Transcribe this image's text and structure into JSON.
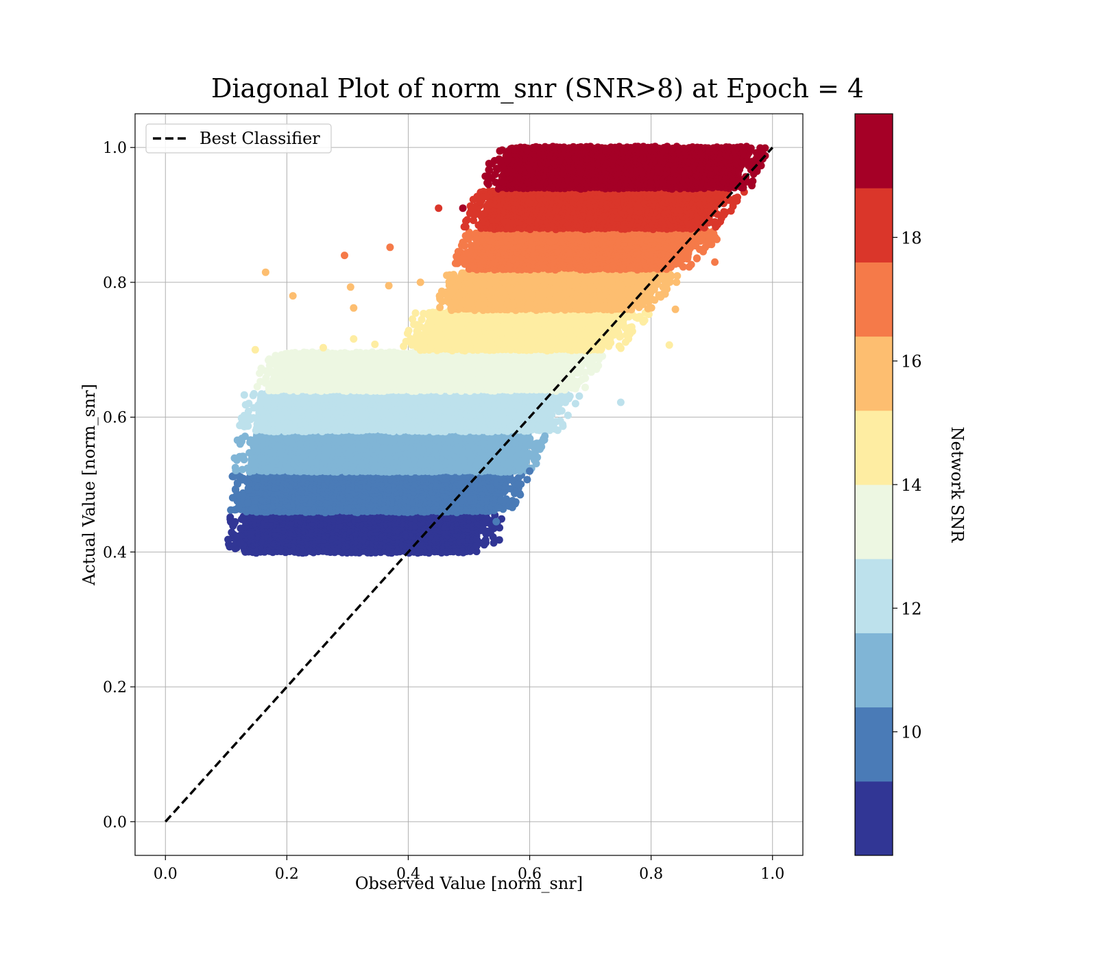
{
  "chart_data": {
    "type": "scatter",
    "title": "Diagonal Plot of norm_snr (SNR>8) at Epoch = 4",
    "xlabel": "Observed Value [norm_snr]",
    "ylabel": "Actual Value [norm_snr]",
    "xlim": [
      -0.05,
      1.05
    ],
    "ylim": [
      -0.05,
      1.05
    ],
    "xticks": [
      "0.0",
      "0.2",
      "0.4",
      "0.6",
      "0.8",
      "1.0"
    ],
    "yticks": [
      "0.0",
      "0.2",
      "0.4",
      "0.6",
      "0.8",
      "1.0"
    ],
    "grid": true,
    "legend": {
      "placement": "top-left",
      "entries": [
        "Best Classifier"
      ]
    },
    "reference_line": {
      "name": "Best Classifier",
      "x": [
        0,
        1
      ],
      "y": [
        0,
        1
      ],
      "style": "dashed",
      "color": "#000000"
    },
    "colorbar": {
      "label": "Network SNR",
      "range": [
        8,
        20
      ],
      "ticks": [
        "10",
        "12",
        "14",
        "16",
        "18"
      ],
      "bins": [
        {
          "from": 8,
          "to": 9.2,
          "color": "#313695"
        },
        {
          "from": 9.2,
          "to": 10.4,
          "color": "#4a7bb7"
        },
        {
          "from": 10.4,
          "to": 11.6,
          "color": "#80b5d6"
        },
        {
          "from": 11.6,
          "to": 12.8,
          "color": "#bde1ec"
        },
        {
          "from": 12.8,
          "to": 14.0,
          "color": "#edf7e2"
        },
        {
          "from": 14.0,
          "to": 15.2,
          "color": "#feeda2"
        },
        {
          "from": 15.2,
          "to": 16.4,
          "color": "#fdbe70"
        },
        {
          "from": 16.4,
          "to": 17.6,
          "color": "#f57a49"
        },
        {
          "from": 17.6,
          "to": 18.8,
          "color": "#da362a"
        },
        {
          "from": 18.8,
          "to": 20.0,
          "color": "#a50026"
        }
      ]
    },
    "scatter_bands": [
      {
        "snr": 8.6,
        "y_range": [
          0.4,
          0.455
        ],
        "x_min": [
          0.13,
          0.135
        ],
        "x_max": [
          0.505,
          0.53
        ]
      },
      {
        "snr": 9.8,
        "y_range": [
          0.46,
          0.515
        ],
        "x_min": [
          0.135,
          0.14
        ],
        "x_max": [
          0.545,
          0.57
        ]
      },
      {
        "snr": 11.0,
        "y_range": [
          0.52,
          0.575
        ],
        "x_min": [
          0.14,
          0.15
        ],
        "x_max": [
          0.58,
          0.6
        ]
      },
      {
        "snr": 12.2,
        "y_range": [
          0.58,
          0.635
        ],
        "x_min": [
          0.15,
          0.16
        ],
        "x_max": [
          0.625,
          0.655
        ]
      },
      {
        "snr": 13.4,
        "y_range": [
          0.64,
          0.695
        ],
        "x_min": [
          0.17,
          0.2
        ],
        "x_max": [
          0.66,
          0.7
        ]
      },
      {
        "snr": 14.6,
        "y_range": [
          0.7,
          0.755
        ],
        "x_min": [
          0.42,
          0.44
        ],
        "x_max": [
          0.72,
          0.77
        ]
      },
      {
        "snr": 15.8,
        "y_range": [
          0.76,
          0.815
        ],
        "x_min": [
          0.47,
          0.49
        ],
        "x_max": [
          0.77,
          0.83
        ]
      },
      {
        "snr": 17.0,
        "y_range": [
          0.82,
          0.875
        ],
        "x_min": [
          0.5,
          0.52
        ],
        "x_max": [
          0.83,
          0.9
        ]
      },
      {
        "snr": 18.2,
        "y_range": [
          0.88,
          0.935
        ],
        "x_min": [
          0.52,
          0.54
        ],
        "x_max": [
          0.88,
          0.93
        ]
      },
      {
        "snr": 19.4,
        "y_range": [
          0.94,
          1.0
        ],
        "x_min": [
          0.55,
          0.57
        ],
        "x_max": [
          0.94,
          0.965
        ]
      }
    ],
    "outliers": [
      {
        "x": 0.165,
        "y": 0.815,
        "snr": 15.8
      },
      {
        "x": 0.21,
        "y": 0.78,
        "snr": 15.8
      },
      {
        "x": 0.295,
        "y": 0.84,
        "snr": 17.0
      },
      {
        "x": 0.37,
        "y": 0.852,
        "snr": 17.0
      },
      {
        "x": 0.305,
        "y": 0.793,
        "snr": 15.8
      },
      {
        "x": 0.31,
        "y": 0.762,
        "snr": 15.8
      },
      {
        "x": 0.368,
        "y": 0.795,
        "snr": 15.8
      },
      {
        "x": 0.42,
        "y": 0.8,
        "snr": 15.8
      },
      {
        "x": 0.148,
        "y": 0.7,
        "snr": 14.6
      },
      {
        "x": 0.26,
        "y": 0.703,
        "snr": 14.6
      },
      {
        "x": 0.31,
        "y": 0.716,
        "snr": 14.6
      },
      {
        "x": 0.345,
        "y": 0.708,
        "snr": 14.6
      },
      {
        "x": 0.45,
        "y": 0.91,
        "snr": 18.2
      },
      {
        "x": 0.49,
        "y": 0.91,
        "snr": 19.4
      },
      {
        "x": 0.55,
        "y": 0.98,
        "snr": 19.4
      },
      {
        "x": 0.555,
        "y": 0.93,
        "snr": 18.2
      },
      {
        "x": 0.75,
        "y": 0.622,
        "snr": 12.2
      },
      {
        "x": 0.83,
        "y": 0.707,
        "snr": 14.6
      },
      {
        "x": 0.84,
        "y": 0.76,
        "snr": 15.8
      },
      {
        "x": 0.905,
        "y": 0.83,
        "snr": 17.0
      },
      {
        "x": 0.95,
        "y": 0.95,
        "snr": 19.4
      },
      {
        "x": 0.115,
        "y": 0.405,
        "snr": 8.6
      },
      {
        "x": 0.55,
        "y": 0.418,
        "snr": 8.6
      },
      {
        "x": 0.545,
        "y": 0.445,
        "snr": 9.8
      },
      {
        "x": 0.58,
        "y": 0.5,
        "snr": 9.8
      },
      {
        "x": 0.6,
        "y": 0.52,
        "snr": 9.8
      },
      {
        "x": 0.625,
        "y": 0.572,
        "snr": 11.0
      },
      {
        "x": 0.615,
        "y": 0.555,
        "snr": 11.0
      }
    ]
  }
}
